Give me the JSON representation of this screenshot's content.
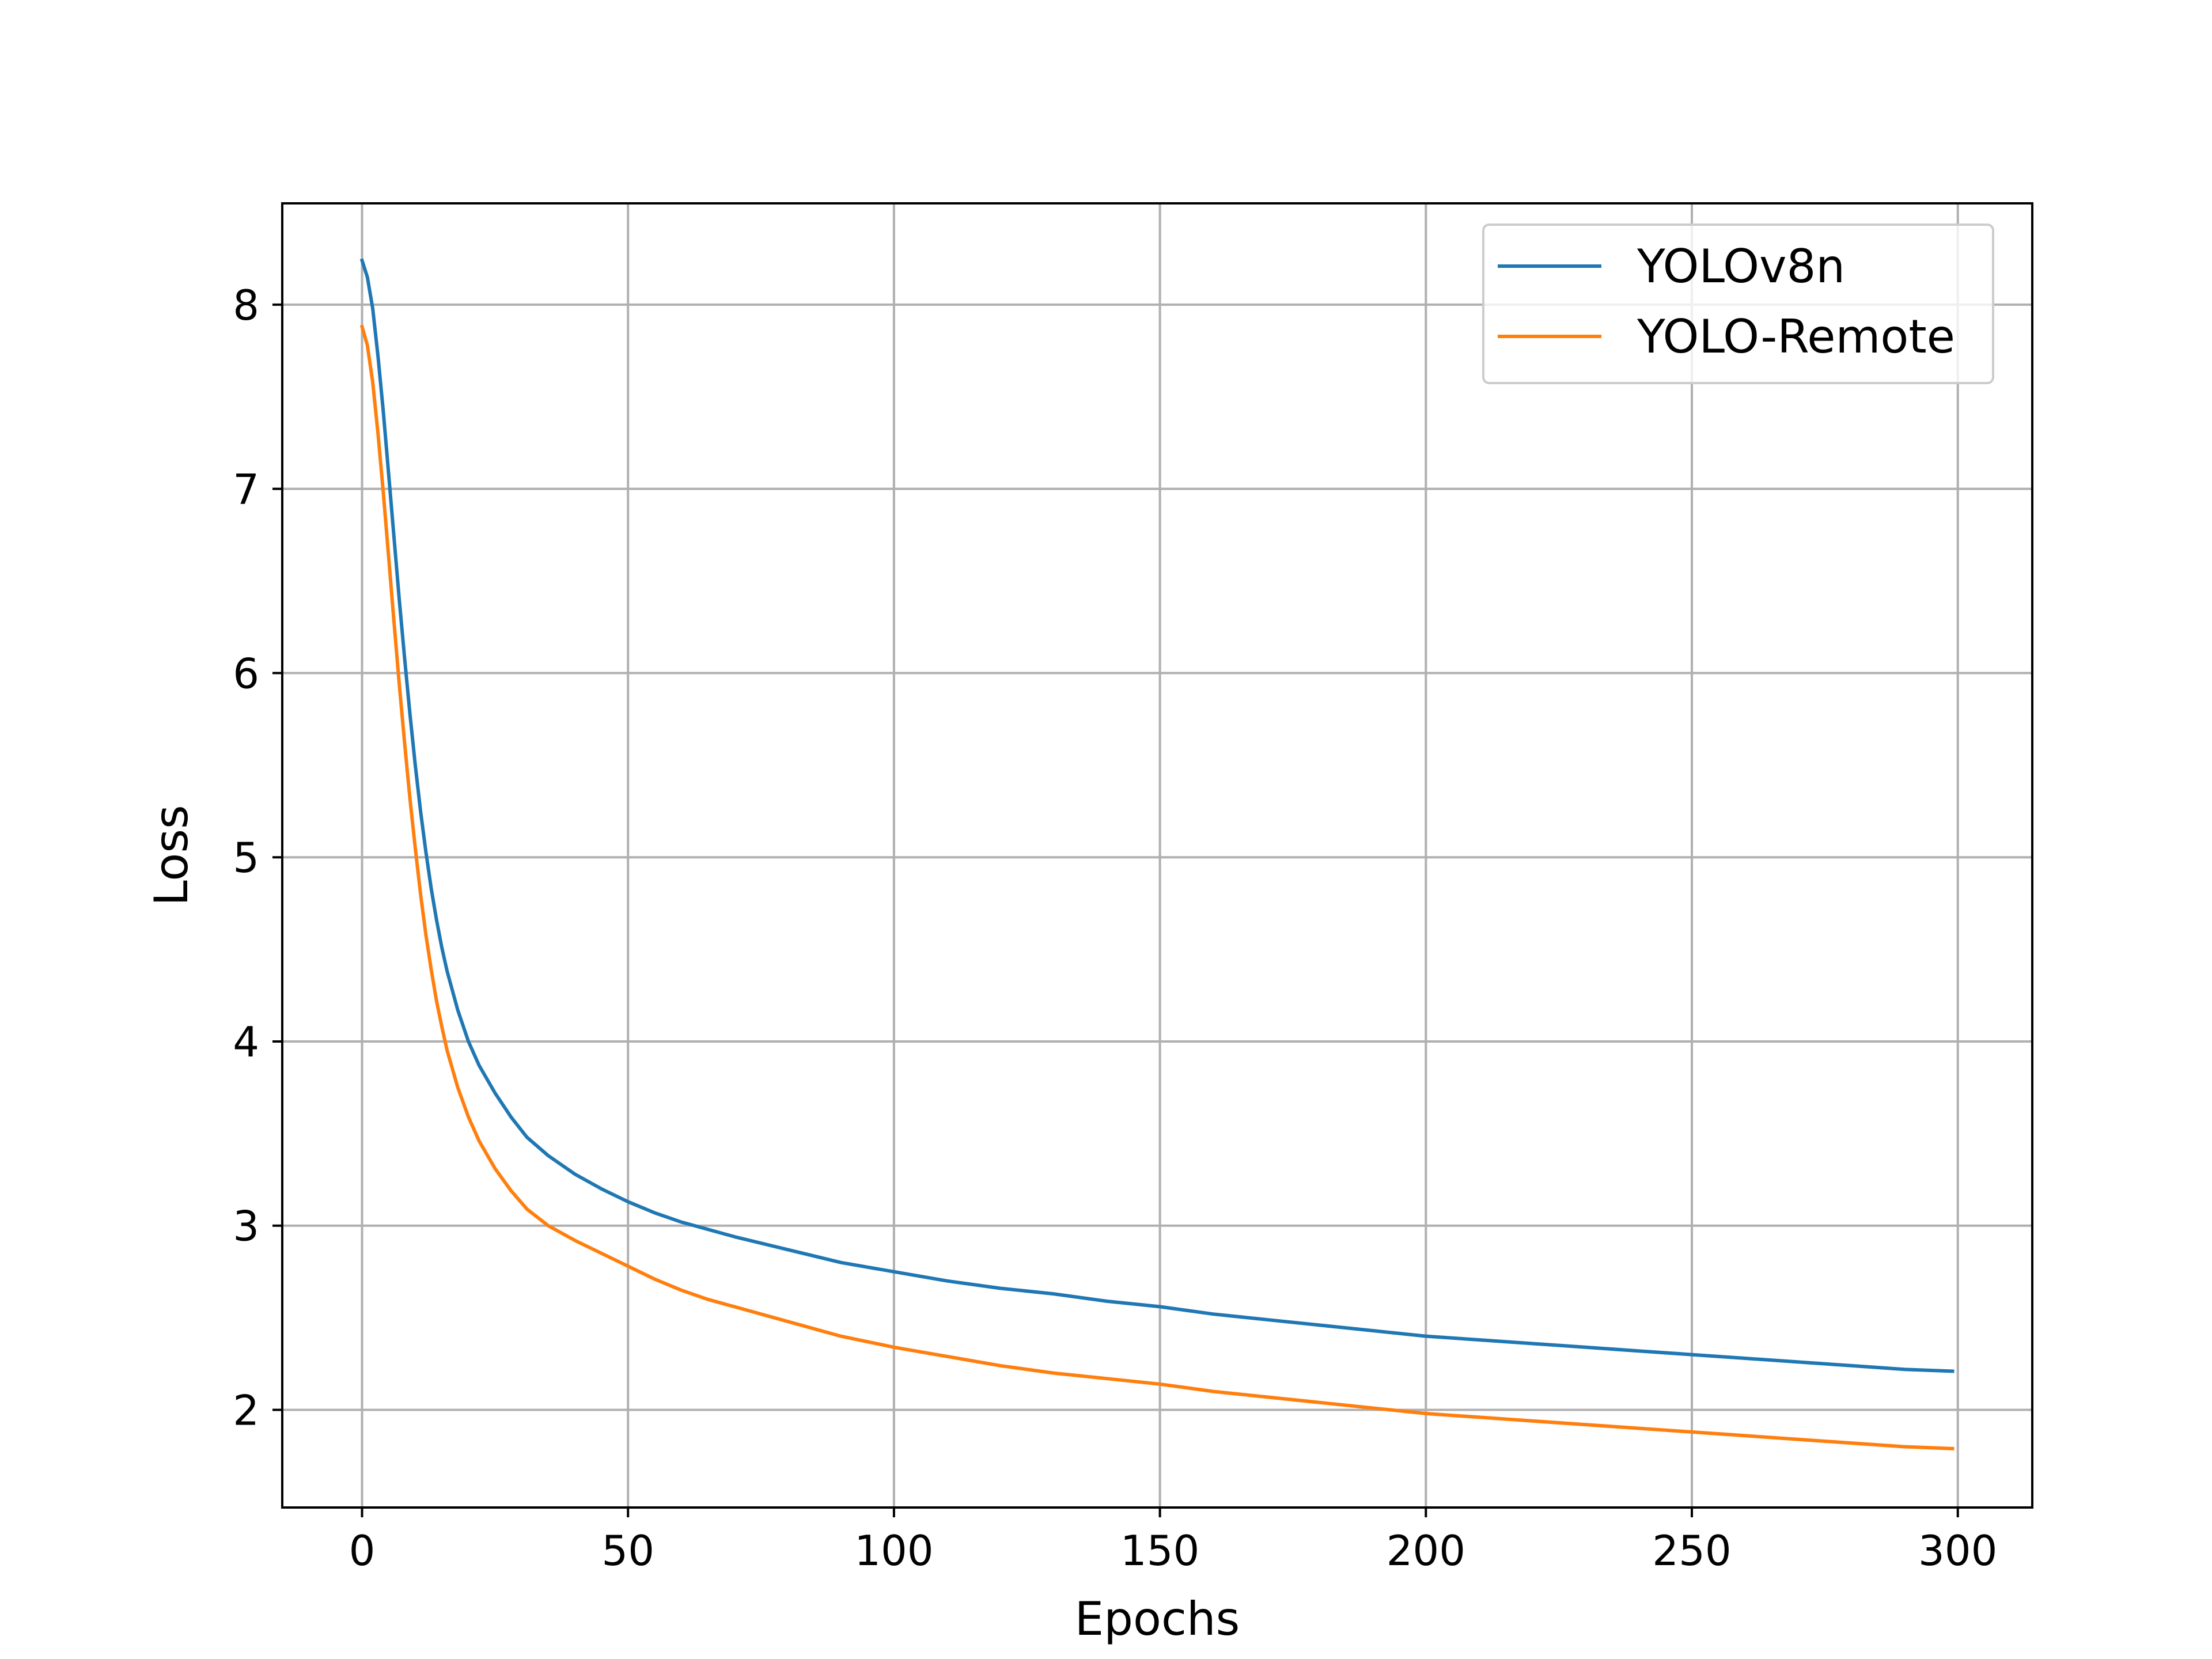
{
  "chart_data": {
    "type": "line",
    "title": "",
    "xlabel": "Epochs",
    "ylabel": "Loss",
    "xlim": [
      -15,
      314
    ],
    "ylim": [
      1.47,
      8.55
    ],
    "xticks": [
      0,
      50,
      100,
      150,
      200,
      250,
      300
    ],
    "yticks": [
      2,
      3,
      4,
      5,
      6,
      7,
      8
    ],
    "grid": true,
    "legend_position": "top-right",
    "series": [
      {
        "name": "YOLOv8n",
        "color": "#1f77b4",
        "x": [
          0,
          1,
          2,
          3,
          4,
          5,
          6,
          7,
          8,
          9,
          10,
          11,
          12,
          13,
          14,
          15,
          16,
          18,
          20,
          22,
          25,
          28,
          31,
          35,
          40,
          45,
          50,
          55,
          60,
          65,
          70,
          80,
          90,
          100,
          110,
          120,
          130,
          140,
          150,
          160,
          170,
          180,
          190,
          200,
          210,
          220,
          230,
          240,
          250,
          260,
          270,
          280,
          290,
          299
        ],
        "y": [
          8.24,
          8.15,
          7.98,
          7.72,
          7.42,
          7.08,
          6.74,
          6.4,
          6.08,
          5.78,
          5.5,
          5.25,
          5.03,
          4.83,
          4.66,
          4.51,
          4.38,
          4.17,
          4.0,
          3.87,
          3.72,
          3.59,
          3.48,
          3.38,
          3.28,
          3.2,
          3.13,
          3.07,
          3.02,
          2.98,
          2.94,
          2.87,
          2.8,
          2.75,
          2.7,
          2.66,
          2.63,
          2.59,
          2.56,
          2.52,
          2.49,
          2.46,
          2.43,
          2.4,
          2.38,
          2.36,
          2.34,
          2.32,
          2.3,
          2.28,
          2.26,
          2.24,
          2.22,
          2.21
        ]
      },
      {
        "name": "YOLO-Remote",
        "color": "#ff7f0e",
        "x": [
          0,
          1,
          2,
          3,
          4,
          5,
          6,
          7,
          8,
          9,
          10,
          11,
          12,
          13,
          14,
          15,
          16,
          18,
          20,
          22,
          25,
          28,
          31,
          35,
          40,
          45,
          50,
          55,
          60,
          65,
          70,
          80,
          90,
          100,
          110,
          120,
          130,
          140,
          150,
          160,
          170,
          180,
          190,
          200,
          210,
          220,
          230,
          240,
          250,
          260,
          270,
          280,
          290,
          299
        ],
        "y": [
          7.88,
          7.78,
          7.58,
          7.3,
          6.98,
          6.63,
          6.28,
          5.94,
          5.62,
          5.32,
          5.05,
          4.8,
          4.58,
          4.39,
          4.22,
          4.08,
          3.95,
          3.75,
          3.59,
          3.46,
          3.31,
          3.19,
          3.09,
          3.0,
          2.92,
          2.85,
          2.78,
          2.71,
          2.65,
          2.6,
          2.56,
          2.48,
          2.4,
          2.34,
          2.29,
          2.24,
          2.2,
          2.17,
          2.14,
          2.1,
          2.07,
          2.04,
          2.01,
          1.98,
          1.96,
          1.94,
          1.92,
          1.9,
          1.88,
          1.86,
          1.84,
          1.82,
          1.8,
          1.79
        ]
      }
    ]
  }
}
